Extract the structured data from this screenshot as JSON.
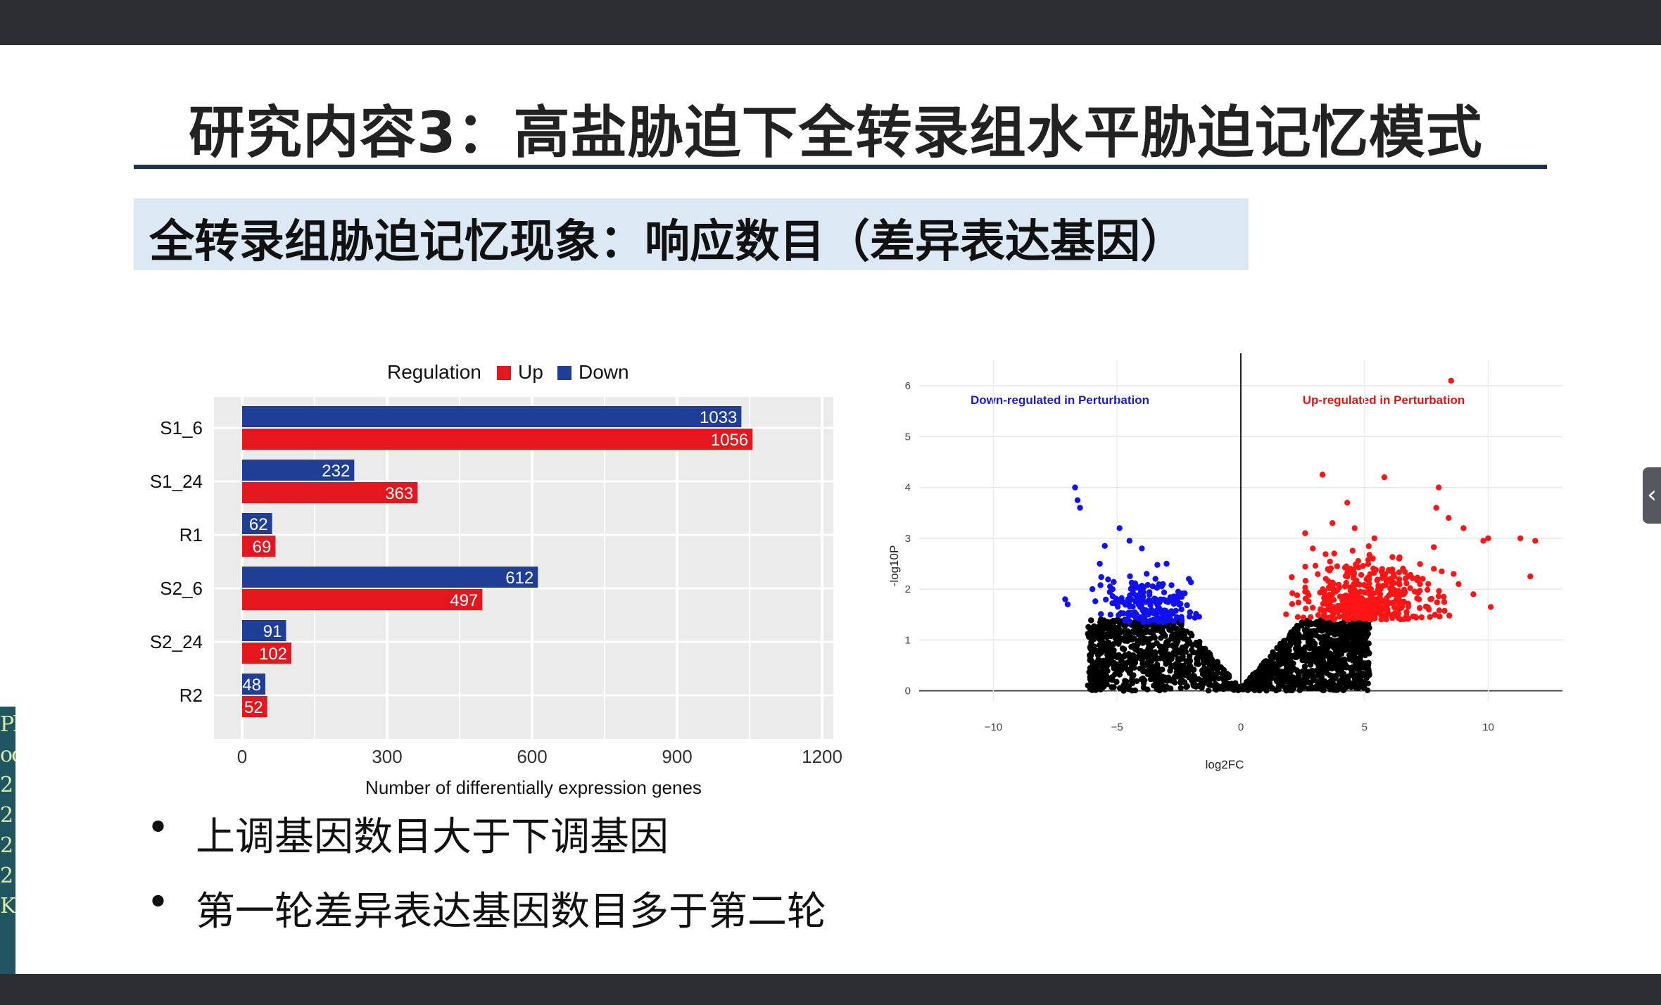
{
  "slide": {
    "title": "研究内容3：高盐胁迫下全转录组水平胁迫记忆模式",
    "subtitle": "全转录组胁迫记忆现象：响应数目（差异表达基因）",
    "bullets": [
      "上调基因数目大于下调基因",
      "第一轮差异表达基因数目多于第二轮"
    ],
    "left_strip_glyphs": [
      "Ph",
      "oc",
      "2",
      "2",
      "2",
      "2",
      "K"
    ],
    "side_tab_icon": "chevron-left-icon"
  },
  "chart_data": [
    {
      "type": "bar",
      "orientation": "horizontal",
      "legend": {
        "title": "Regulation",
        "position": "top"
      },
      "categories": [
        "S1_6",
        "S1_24",
        "R1",
        "S2_6",
        "S2_24",
        "R2"
      ],
      "series": [
        {
          "name": "Down",
          "color": "#1f3e96",
          "values": [
            1033,
            232,
            62,
            612,
            91,
            48
          ]
        },
        {
          "name": "Up",
          "color": "#e4171f",
          "values": [
            1056,
            363,
            69,
            497,
            102,
            52
          ]
        }
      ],
      "xticks": [
        "0",
        "300",
        "600",
        "900",
        "1200"
      ],
      "xlabel": "Number of differentially expression genes",
      "ylabel": "",
      "xlim": [
        0,
        1200
      ],
      "grid": true
    },
    {
      "type": "scatter",
      "title_left": "Down-regulated in Perturbation",
      "title_right": "Up-regulated in Perturbation",
      "xlabel": "log2FC",
      "ylabel": "-log10P",
      "xlim": [
        -13,
        13
      ],
      "ylim": [
        -0.2,
        6.5
      ],
      "xticks": [
        "−10",
        "−5",
        "0",
        "5",
        "10"
      ],
      "yticks": [
        "0",
        "1",
        "2",
        "3",
        "4",
        "5",
        "6"
      ],
      "colors": {
        "down": "#1010f0",
        "up": "#ff1515",
        "ns": "#000000"
      },
      "up_points": [
        [
          8.5,
          6.1
        ],
        [
          3.3,
          4.25
        ],
        [
          5.8,
          4.2
        ],
        [
          8.0,
          4.0
        ],
        [
          4.3,
          3.7
        ],
        [
          7.9,
          3.6
        ],
        [
          8.4,
          3.4
        ],
        [
          9.0,
          3.2
        ],
        [
          9.8,
          2.95
        ],
        [
          10.0,
          3.0
        ],
        [
          11.3,
          3.0
        ],
        [
          11.9,
          2.95
        ],
        [
          11.7,
          2.25
        ],
        [
          10.1,
          1.65
        ],
        [
          9.4,
          1.9
        ],
        [
          8.8,
          2.1
        ],
        [
          7.6,
          1.6
        ],
        [
          7.2,
          1.8
        ],
        [
          6.7,
          1.55
        ],
        [
          4.6,
          3.2
        ],
        [
          3.7,
          3.3
        ],
        [
          2.6,
          3.1
        ],
        [
          5.4,
          3.0
        ],
        [
          6.4,
          2.6
        ],
        [
          7.8,
          2.4
        ],
        [
          8.6,
          2.3
        ],
        [
          8.2,
          1.85
        ]
      ],
      "down_points": [
        [
          -6.7,
          4.0
        ],
        [
          -6.6,
          3.75
        ],
        [
          -6.5,
          3.6
        ],
        [
          -4.9,
          3.2
        ],
        [
          -5.5,
          2.85
        ],
        [
          -4.5,
          2.95
        ],
        [
          -4.0,
          2.8
        ],
        [
          -2.1,
          2.2
        ],
        [
          -7.1,
          1.8
        ],
        [
          -7.0,
          1.7
        ],
        [
          -5.7,
          2.5
        ],
        [
          -6.0,
          2.0
        ],
        [
          -3.0,
          2.5
        ]
      ],
      "clusters": {
        "up_center": [
          4.2,
          2.0
        ],
        "up_count": 420,
        "down_center": [
          -3.7,
          1.95
        ],
        "down_count": 190,
        "ns_count": 1700
      }
    }
  ]
}
